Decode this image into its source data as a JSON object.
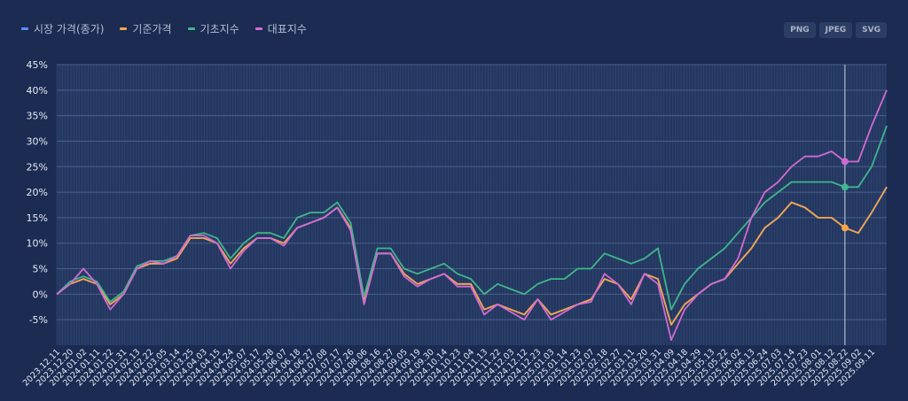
{
  "export_buttons": [
    "PNG",
    "JPEG",
    "SVG"
  ],
  "chart_data": {
    "type": "line",
    "title": "",
    "xlabel": "",
    "ylabel": "",
    "ylim": [
      -10,
      45
    ],
    "yticks": [
      -5,
      0,
      5,
      10,
      15,
      20,
      25,
      30,
      35,
      40,
      45
    ],
    "ytick_labels": [
      "-5%",
      "0%",
      "5%",
      "10%",
      "15%",
      "20%",
      "25%",
      "30%",
      "35%",
      "40%",
      "45%"
    ],
    "grid": true,
    "legend_position": "top-left",
    "crosshair_category": "2025.08.22",
    "categories": [
      "2023.12.11",
      "2023.12.20",
      "2024.01.02",
      "2024.01.11",
      "2024.01.22",
      "2024.01.31",
      "2024.02.13",
      "2024.02.22",
      "2024.03.05",
      "2024.03.14",
      "2024.03.25",
      "2024.04.03",
      "2024.04.15",
      "2024.04.24",
      "2024.05.07",
      "2024.05.17",
      "2024.05.28",
      "2024.06.07",
      "2024.06.18",
      "2024.06.27",
      "2024.07.08",
      "2024.07.17",
      "2024.07.26",
      "2024.08.06",
      "2024.08.16",
      "2024.08.27",
      "2024.09.05",
      "2024.09.19",
      "2024.09.30",
      "2024.10.14",
      "2024.10.23",
      "2024.11.04",
      "2024.11.13",
      "2024.11.22",
      "2024.12.03",
      "2024.12.12",
      "2024.12.23",
      "2025.01.03",
      "2025.01.14",
      "2025.01.23",
      "2025.02.07",
      "2025.02.18",
      "2025.02.27",
      "2025.03.11",
      "2025.03.20",
      "2025.03.31",
      "2025.04.09",
      "2025.04.18",
      "2025.04.29",
      "2025.05.13",
      "2025.05.22",
      "2025.06.02",
      "2025.06.13",
      "2025.06.24",
      "2025.07.03",
      "2025.07.14",
      "2025.07.23",
      "2025.08.01",
      "2025.08.12",
      "2025.08.22",
      "2025.09.02",
      "2025.09.11",
      ""
    ],
    "series": [
      {
        "name": "시장 가격(종가)",
        "color": "#5b8ff9",
        "values": [
          0,
          2,
          3,
          2,
          -2,
          0,
          5,
          6,
          6,
          7,
          11,
          11,
          10,
          6,
          9,
          11,
          11,
          10,
          13,
          14,
          15,
          17,
          13,
          -1,
          8,
          8,
          4,
          2,
          3,
          4,
          2,
          2,
          -3,
          -2,
          -3,
          -4,
          -1,
          -4,
          -3,
          -2,
          -1,
          3,
          2,
          -1,
          4,
          3,
          -6,
          -2,
          0,
          2,
          3,
          6,
          9,
          13,
          15,
          18,
          17,
          15,
          15,
          13,
          12,
          16,
          21
        ]
      },
      {
        "name": "기준가격",
        "color": "#f6a54a",
        "values": [
          0,
          2,
          3,
          2,
          -2,
          0,
          5,
          6,
          6,
          7,
          11,
          11,
          10,
          6,
          9,
          11,
          11,
          10,
          13,
          14,
          15,
          17,
          13,
          -1,
          8,
          8,
          4,
          2,
          3,
          4,
          2,
          2,
          -3,
          -2,
          -3,
          -4,
          -1,
          -4,
          -3,
          -2,
          -1,
          3,
          2,
          -1,
          4,
          3,
          -6,
          -2,
          0,
          2,
          3,
          6,
          9,
          13,
          15,
          18,
          17,
          15,
          15,
          13,
          12,
          16,
          21
        ]
      },
      {
        "name": "기초지수",
        "color": "#3fb68b",
        "values": [
          0,
          2.5,
          3.5,
          2.5,
          -1.5,
          0.5,
          5.5,
          6.5,
          6.5,
          7.5,
          11.5,
          12,
          11,
          7,
          10,
          12,
          12,
          11,
          15,
          16,
          16,
          18,
          14,
          -0.5,
          9,
          9,
          5,
          4,
          5,
          6,
          4,
          3,
          0,
          2,
          1,
          0,
          2,
          3,
          3,
          5,
          5,
          8,
          7,
          6,
          7,
          9,
          -3,
          2,
          5,
          7,
          9,
          12,
          15,
          18,
          20,
          22,
          22,
          22,
          22,
          21,
          21,
          25,
          33
        ]
      },
      {
        "name": "대표지수",
        "color": "#d16bd1",
        "values": [
          0,
          2,
          5,
          2,
          -3,
          0,
          5,
          6.5,
          6,
          7.5,
          11.5,
          11.5,
          10,
          5,
          8.5,
          11,
          11,
          9.5,
          13,
          14,
          15,
          17,
          12.5,
          -2,
          8,
          8,
          3.5,
          1.5,
          3,
          4,
          1.5,
          1.5,
          -4,
          -2,
          -3.5,
          -5,
          -1,
          -5,
          -3.5,
          -2,
          -1.5,
          4,
          2,
          -2,
          4,
          2,
          -9,
          -3,
          0,
          2,
          3,
          7,
          15,
          20,
          22,
          25,
          27,
          27,
          28,
          26,
          26,
          33,
          40
        ]
      }
    ]
  }
}
